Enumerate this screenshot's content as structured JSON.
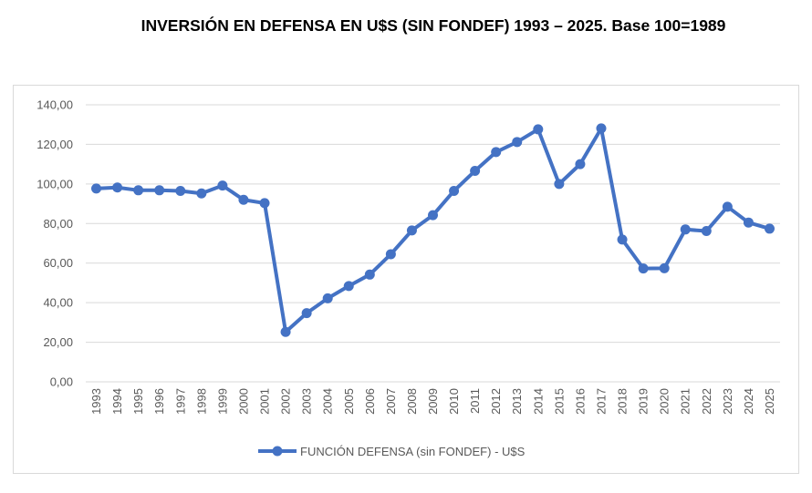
{
  "chart_data": {
    "type": "line",
    "title": "INVERSIÓN EN DEFENSA EN U$S (SIN FONDEF) 1993 – 2025. Base 100=1989",
    "xlabel": "",
    "ylabel": "",
    "ylim": [
      0,
      140
    ],
    "yticks": [
      "0,00",
      "20,00",
      "40,00",
      "60,00",
      "80,00",
      "100,00",
      "120,00",
      "140,00"
    ],
    "grid": true,
    "legend": "bottom",
    "categories": [
      "1993",
      "1994",
      "1995",
      "1996",
      "1997",
      "1998",
      "1999",
      "2000",
      "2001",
      "2002",
      "2003",
      "2004",
      "2005",
      "2006",
      "2007",
      "2008",
      "2009",
      "2010",
      "2011",
      "2012",
      "2013",
      "2014",
      "2015",
      "2016",
      "2017",
      "2018",
      "2019",
      "2020",
      "2021",
      "2022",
      "2023",
      "2024",
      "2025"
    ],
    "series": [
      {
        "name": "FUNCIÓN DEFENSA (sin FONDEF) - U$S",
        "color": "#4472c4",
        "values": [
          97.7,
          98.2,
          96.8,
          96.8,
          96.5,
          95.2,
          99.2,
          92.0,
          90.3,
          25.2,
          34.7,
          42.2,
          48.4,
          54.2,
          64.5,
          76.5,
          84.2,
          96.5,
          106.6,
          116.1,
          121.2,
          127.6,
          100.0,
          110.0,
          128.1,
          71.9,
          57.3,
          57.4,
          77.0,
          76.2,
          88.5,
          80.5,
          77.4
        ]
      }
    ]
  }
}
